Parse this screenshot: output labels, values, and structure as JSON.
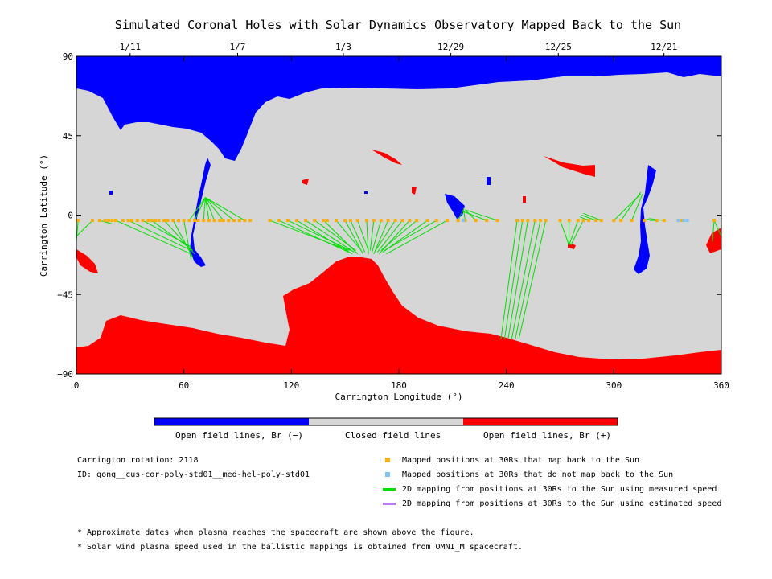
{
  "chart_data": {
    "type": "map",
    "title": "Simulated Coronal Holes with Solar Dynamics Observatory Mapped Back to the Sun",
    "xlabel": "Carrington Longitude (°)",
    "ylabel": "Carrington Latitude (°)",
    "xlim": [
      0,
      360
    ],
    "ylim": [
      -90,
      90
    ],
    "xticks": [
      "0",
      "60",
      "120",
      "180",
      "240",
      "300",
      "360"
    ],
    "yticks": [
      "90",
      "45",
      "0",
      "−45",
      "−90"
    ],
    "top_dates": [
      {
        "label": "1/11",
        "lon": 30
      },
      {
        "label": "1/7",
        "lon": 90
      },
      {
        "label": "1/3",
        "lon": 149
      },
      {
        "label": "12/29",
        "lon": 209
      },
      {
        "label": "12/25",
        "lon": 269
      },
      {
        "label": "12/21",
        "lon": 328
      }
    ],
    "colors": {
      "open_negative": "#0000ff",
      "closed": "#d6d6d6",
      "open_positive": "#ff0000",
      "mapped": "#ffae00",
      "unmapped": "#7fc4f5",
      "measured": "#00e000",
      "estimated": "#b57ff0"
    },
    "colorbar": [
      "Open field lines, Br (−)",
      "Closed field lines",
      "Open field lines, Br (+)"
    ],
    "mapped_points_lon": [
      1,
      9,
      13,
      16,
      18,
      20,
      22,
      26,
      29,
      31,
      34,
      37,
      40,
      42,
      44,
      46,
      49,
      51,
      54,
      57,
      60,
      63,
      66,
      68,
      71,
      74,
      77,
      80,
      82,
      85,
      88,
      91,
      94,
      97,
      108,
      113,
      118,
      123,
      128,
      133,
      138,
      140,
      145,
      150,
      153,
      157,
      162,
      166,
      170,
      174,
      178,
      182,
      186,
      190,
      196,
      201,
      207,
      213,
      217,
      223,
      229,
      235,
      246,
      249,
      252,
      256,
      259,
      262,
      270,
      275,
      280,
      283,
      286,
      290,
      293,
      300,
      304,
      310,
      317,
      324,
      328,
      336,
      338,
      356
    ],
    "unmapped_points_lon": [
      216,
      336,
      339,
      341
    ],
    "footpoint_lat": -3,
    "mapping_lines": [
      [
        1,
        -3,
        0,
        -15
      ],
      [
        9,
        -3,
        0,
        -12
      ],
      [
        13,
        -3,
        20,
        -5
      ],
      [
        22,
        -3,
        64,
        -22
      ],
      [
        29,
        -3,
        64,
        -20
      ],
      [
        37,
        -3,
        64,
        -18
      ],
      [
        42,
        -3,
        65,
        -20
      ],
      [
        49,
        -3,
        66,
        -22
      ],
      [
        54,
        -3,
        65,
        -24
      ],
      [
        60,
        -3,
        64,
        -25
      ],
      [
        63,
        -3,
        72,
        10
      ],
      [
        66,
        -3,
        72,
        10
      ],
      [
        71,
        -3,
        72,
        10
      ],
      [
        74,
        -3,
        72,
        10
      ],
      [
        77,
        -3,
        72,
        10
      ],
      [
        82,
        -3,
        72,
        10
      ],
      [
        88,
        -3,
        72,
        10
      ],
      [
        94,
        -3,
        72,
        10
      ],
      [
        108,
        -3,
        152,
        -20
      ],
      [
        113,
        -3,
        152,
        -21
      ],
      [
        118,
        -3,
        153,
        -20
      ],
      [
        123,
        -3,
        154,
        -22
      ],
      [
        128,
        -3,
        155,
        -21
      ],
      [
        133,
        -3,
        156,
        -20
      ],
      [
        138,
        -3,
        157,
        -22
      ],
      [
        145,
        -3,
        159,
        -20
      ],
      [
        150,
        -3,
        160,
        -22
      ],
      [
        153,
        -3,
        161,
        -21
      ],
      [
        157,
        -3,
        163,
        -20
      ],
      [
        162,
        -3,
        163,
        -22
      ],
      [
        166,
        -3,
        164,
        -20
      ],
      [
        170,
        -3,
        165,
        -21
      ],
      [
        174,
        -3,
        166,
        -22
      ],
      [
        178,
        -3,
        167,
        -20
      ],
      [
        182,
        -3,
        168,
        -21
      ],
      [
        186,
        -3,
        169,
        -22
      ],
      [
        190,
        -3,
        170,
        -20
      ],
      [
        196,
        -3,
        171,
        -21
      ],
      [
        201,
        -3,
        172,
        -20
      ],
      [
        207,
        -3,
        173,
        -22
      ],
      [
        213,
        -3,
        216,
        3
      ],
      [
        217,
        -3,
        216,
        4
      ],
      [
        223,
        -3,
        217,
        3
      ],
      [
        229,
        -3,
        216,
        2
      ],
      [
        235,
        -3,
        217,
        3
      ],
      [
        246,
        -3,
        237,
        -70
      ],
      [
        249,
        -3,
        239,
        -70
      ],
      [
        252,
        -3,
        241,
        -70
      ],
      [
        256,
        -3,
        243,
        -70
      ],
      [
        259,
        -3,
        245,
        -70
      ],
      [
        262,
        -3,
        247,
        -70
      ],
      [
        270,
        -3,
        275,
        -17
      ],
      [
        275,
        -3,
        275,
        -17
      ],
      [
        280,
        -3,
        275,
        -17
      ],
      [
        283,
        -3,
        276,
        -17
      ],
      [
        286,
        -3,
        281,
        -1
      ],
      [
        290,
        -3,
        282,
        0
      ],
      [
        293,
        -3,
        283,
        1
      ],
      [
        300,
        -3,
        315,
        12
      ],
      [
        304,
        -3,
        315,
        13
      ],
      [
        310,
        -3,
        316,
        12
      ],
      [
        317,
        -3,
        320,
        -2
      ],
      [
        324,
        -3,
        320,
        -3
      ],
      [
        328,
        -3,
        320,
        -2
      ],
      [
        356,
        -3,
        355,
        -15
      ],
      [
        356,
        -3,
        360,
        -12
      ]
    ],
    "legend": [
      "Mapped positions at 30Rs that map back to the Sun",
      "Mapped positions at 30Rs that do not map back to the Sun",
      "2D mapping from positions at 30Rs to the Sun using measured speed",
      "2D mapping from positions at 30Rs to the Sun using estimated speed"
    ]
  },
  "info": {
    "rotation": "Carrington rotation: 2118",
    "id": "ID: gong__cus-cor-poly-std01__med-hel-poly-std01"
  },
  "footnotes": [
    "* Approximate dates when plasma reaches the spacecraft are shown above the figure.",
    "* Solar wind plasma speed used in the ballistic mappings is obtained from OMNI_M spacecraft."
  ]
}
